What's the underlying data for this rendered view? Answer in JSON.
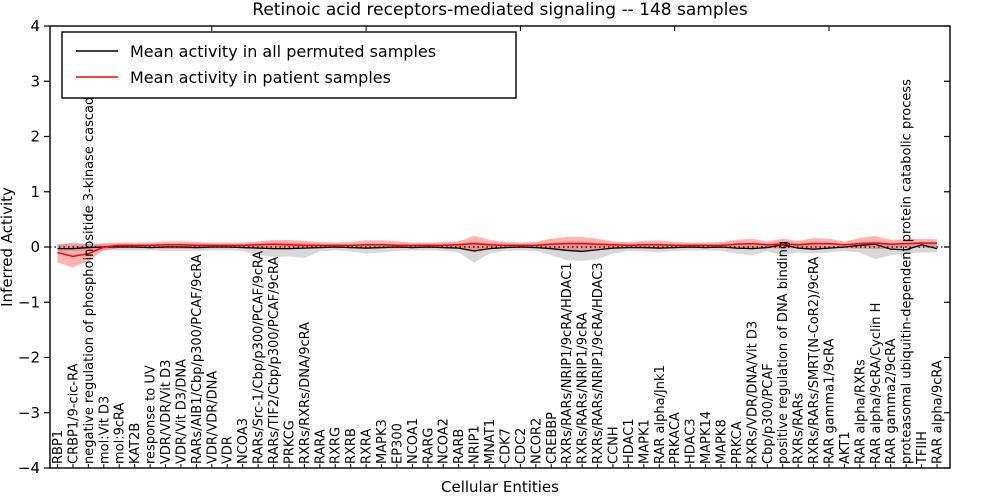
{
  "chart_data": {
    "type": "line",
    "title": "Retinoic acid receptors-mediated signaling -- 148 samples",
    "xlabel": "Cellular Entities",
    "ylabel": "Inferred Activity",
    "ylim": [
      -4,
      4
    ],
    "grid": false,
    "background": "#ffffff",
    "yticks": [
      [
        4,
        "4"
      ],
      [
        3,
        "3"
      ],
      [
        2,
        "2"
      ],
      [
        1,
        "1"
      ],
      [
        0,
        "0"
      ],
      [
        -1,
        "−1"
      ],
      [
        -2,
        "−2"
      ],
      [
        -3,
        "−3"
      ],
      [
        -4,
        "−4"
      ]
    ],
    "legend": {
      "position": "upper left",
      "entries": [
        {
          "label": "Mean activity in all permuted samples",
          "color": "#000000"
        },
        {
          "label": "Mean activity in patient samples",
          "color": "#ff0000"
        }
      ]
    },
    "zero_line": {
      "value": 0,
      "style": "dotted",
      "color": "#000000"
    },
    "categories": [
      "RBP1",
      "CRBP1/9-cic-RA",
      "negative regulation of phosphoinositide 3-kinase cascade",
      "mol:Vit D3",
      "mol:9cRA",
      "KAT2B",
      "response to UV",
      "VDR/VDR/Vit D3",
      "VDR/Vit D3/DNA",
      "RARs/AIB1/Cbp/p300/PCAF/9cRA",
      "VDR/VDR/DNA",
      "VDR",
      "NCOA3",
      "RARs/Src-1/Cbp/p300/PCAF/9cRA",
      "RARs/TIF2/Cbp/p300/PCAF/9cRA",
      "PRKCG",
      "RXRs/RXRs/DNA/9cRA",
      "RARA",
      "RXRG",
      "RXRB",
      "RXRA",
      "MAPK3",
      "EP300",
      "NCOA1",
      "RARG",
      "NCOA2",
      "RARB",
      "NRIP1",
      "MNAT1",
      "CDK7",
      "CDC2",
      "NCOR2",
      "CREBBP",
      "RXRs/RARs/NRIP1/9cRA/HDAC1",
      "RXRs/RARs/NRIP1/9cRA",
      "RXRs/RARs/NRIP1/9cRA/HDAC3",
      "CCNH",
      "HDAC1",
      "MAPK1",
      "RAR alpha/Jnk1",
      "PRKACA",
      "HDAC3",
      "MAPK14",
      "MAPK8",
      "PRKCA",
      "RXRs/VDR/DNA/Vit D3",
      "Cbp/p300/PCAF",
      "positive regulation of DNA binding",
      "RXRs/RARs",
      "RXRs/RARs/SMRT(N-CoR2)/9cRA",
      "RAR gamma1/9cRA",
      "AKT1",
      "RAR alpha/RXRs",
      "RAR alpha/9cRA/Cyclin H",
      "RAR gamma2/9cRA",
      "proteasomal ubiquitin-dependent protein catabolic process",
      "TFIIH",
      "RAR alpha/9cRA"
    ],
    "series": [
      {
        "name": "Mean activity in all permuted samples",
        "color": "#000000",
        "width": 1.3,
        "values": [
          -0.03,
          -0.03,
          -0.01,
          0.0,
          0.0,
          0.0,
          -0.01,
          0.0,
          0.0,
          -0.01,
          0.0,
          0.0,
          -0.01,
          -0.02,
          -0.03,
          -0.03,
          -0.02,
          -0.01,
          0.0,
          -0.01,
          -0.02,
          -0.01,
          0.0,
          -0.01,
          0.0,
          -0.01,
          -0.02,
          -0.07,
          -0.03,
          -0.01,
          0.0,
          -0.01,
          -0.03,
          -0.06,
          -0.08,
          -0.05,
          -0.02,
          -0.01,
          -0.01,
          -0.02,
          -0.01,
          0.0,
          -0.01,
          0.0,
          -0.02,
          -0.03,
          -0.01,
          0.04,
          -0.02,
          -0.04,
          -0.02,
          0.0,
          0.03,
          0.05,
          -0.04,
          -0.05,
          0.04,
          -0.03
        ]
      },
      {
        "name": "Mean activity in patient samples",
        "color": "#ff0000",
        "width": 1.5,
        "values": [
          -0.1,
          -0.17,
          -0.12,
          0.0,
          0.03,
          0.03,
          0.03,
          0.04,
          0.04,
          0.03,
          0.03,
          0.03,
          0.03,
          0.04,
          0.05,
          0.04,
          0.03,
          0.03,
          0.03,
          0.03,
          0.04,
          0.04,
          0.03,
          0.03,
          0.03,
          0.03,
          0.04,
          0.06,
          0.04,
          0.03,
          0.03,
          0.03,
          0.05,
          0.06,
          0.06,
          0.05,
          0.04,
          0.03,
          0.04,
          0.04,
          0.03,
          0.03,
          0.03,
          0.03,
          0.05,
          0.06,
          0.04,
          0.05,
          0.04,
          0.06,
          0.06,
          0.04,
          0.06,
          0.07,
          0.05,
          0.06,
          0.07,
          0.07
        ]
      }
    ],
    "bands": [
      {
        "name": "permuted-range",
        "color": "#999999",
        "opacity": 0.38,
        "upper": [
          0.05,
          0.05,
          0.05,
          0.05,
          0.05,
          0.05,
          0.05,
          0.06,
          0.06,
          0.06,
          0.05,
          0.05,
          0.05,
          0.07,
          0.08,
          0.08,
          0.07,
          0.05,
          0.05,
          0.05,
          0.06,
          0.06,
          0.05,
          0.05,
          0.05,
          0.05,
          0.06,
          0.1,
          0.07,
          0.05,
          0.05,
          0.05,
          0.08,
          0.1,
          0.1,
          0.08,
          0.06,
          0.05,
          0.06,
          0.06,
          0.05,
          0.05,
          0.05,
          0.05,
          0.07,
          0.08,
          0.06,
          0.1,
          0.07,
          0.08,
          0.07,
          0.05,
          0.08,
          0.1,
          0.07,
          0.07,
          0.09,
          0.06
        ],
        "lower": [
          -0.08,
          -0.08,
          -0.07,
          -0.06,
          -0.06,
          -0.06,
          -0.06,
          -0.07,
          -0.07,
          -0.07,
          -0.06,
          -0.06,
          -0.07,
          -0.14,
          -0.18,
          -0.17,
          -0.2,
          -0.08,
          -0.06,
          -0.08,
          -0.12,
          -0.1,
          -0.07,
          -0.06,
          -0.06,
          -0.07,
          -0.1,
          -0.28,
          -0.12,
          -0.07,
          -0.06,
          -0.07,
          -0.15,
          -0.24,
          -0.25,
          -0.22,
          -0.12,
          -0.07,
          -0.08,
          -0.1,
          -0.07,
          -0.06,
          -0.06,
          -0.07,
          -0.12,
          -0.15,
          -0.08,
          -0.15,
          -0.1,
          -0.12,
          -0.1,
          -0.07,
          -0.1,
          -0.22,
          -0.15,
          -0.12,
          -0.1,
          -0.1
        ]
      },
      {
        "name": "patient-range",
        "color": "#ff2222",
        "opacity": 0.35,
        "upper": [
          0.04,
          0.08,
          0.05,
          0.07,
          0.08,
          0.08,
          0.08,
          0.1,
          0.1,
          0.09,
          0.08,
          0.08,
          0.08,
          0.1,
          0.13,
          0.13,
          0.11,
          0.09,
          0.08,
          0.09,
          0.12,
          0.12,
          0.1,
          0.08,
          0.08,
          0.09,
          0.1,
          0.2,
          0.13,
          0.09,
          0.08,
          0.09,
          0.15,
          0.18,
          0.18,
          0.15,
          0.1,
          0.09,
          0.11,
          0.12,
          0.09,
          0.08,
          0.08,
          0.09,
          0.13,
          0.15,
          0.1,
          0.15,
          0.11,
          0.16,
          0.15,
          0.1,
          0.16,
          0.2,
          0.13,
          0.14,
          0.15,
          0.14
        ],
        "lower": [
          -0.28,
          -0.37,
          -0.25,
          -0.06,
          -0.02,
          -0.02,
          -0.02,
          -0.03,
          -0.03,
          -0.03,
          -0.02,
          -0.02,
          -0.02,
          -0.03,
          -0.04,
          -0.04,
          -0.03,
          -0.02,
          -0.02,
          -0.02,
          -0.03,
          -0.03,
          -0.02,
          -0.02,
          -0.02,
          -0.02,
          -0.03,
          -0.1,
          -0.04,
          -0.02,
          -0.02,
          -0.02,
          -0.05,
          -0.08,
          -0.08,
          -0.06,
          -0.03,
          -0.02,
          -0.03,
          -0.03,
          -0.02,
          -0.02,
          -0.02,
          -0.02,
          -0.03,
          -0.04,
          -0.02,
          -0.03,
          -0.02,
          -0.04,
          -0.03,
          -0.02,
          -0.03,
          -0.04,
          -0.03,
          -0.02,
          -0.01,
          0.0
        ]
      }
    ]
  }
}
